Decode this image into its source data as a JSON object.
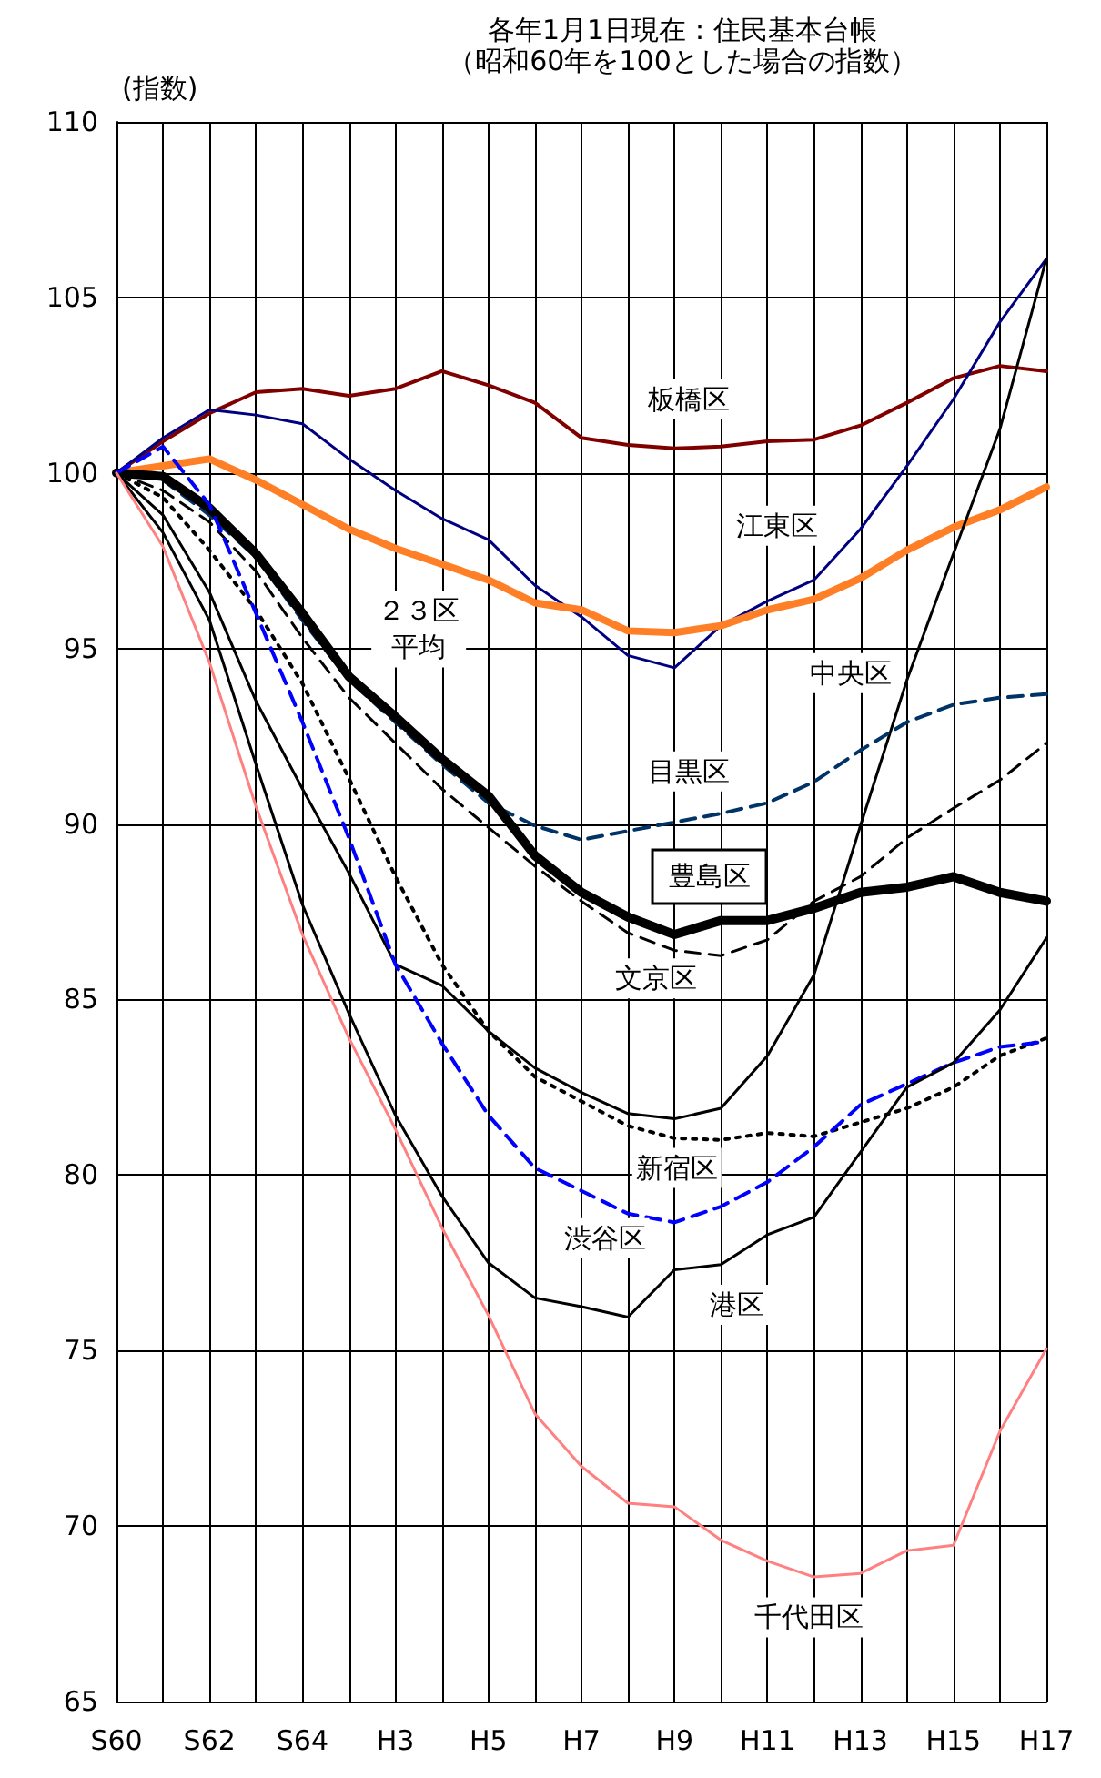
{
  "chart_data": {
    "type": "line",
    "title": "各年1月1日現在：住民基本台帳",
    "subtitle": "（昭和60年を100とした場合の指数）",
    "ylabel": "(指数)",
    "categories": [
      "S60",
      null,
      "S62",
      null,
      "S64",
      null,
      "H3",
      null,
      "H5",
      null,
      "H7",
      null,
      "H9",
      null,
      "H11",
      null,
      "H13",
      null,
      "H15",
      null,
      "H17"
    ],
    "ylim": [
      65,
      110
    ],
    "yticks": [
      65,
      70,
      75,
      80,
      85,
      90,
      95,
      100,
      105,
      110
    ],
    "grid": true,
    "legend": false,
    "marker": "none",
    "series": [
      {
        "name": "板橋区",
        "color": "#800000",
        "line_style": "solid",
        "values": [
          100,
          100.9,
          101.7,
          102.3,
          102.4,
          102.2,
          102.4,
          102.9,
          102.5,
          102.0,
          101.0,
          100.8,
          100.7,
          100.75,
          100.9,
          100.95,
          101.35,
          102.0,
          102.7,
          103.05,
          102.9
        ]
      },
      {
        "name": "江東区",
        "color": "#000080",
        "line_style": "solid",
        "values": [
          100,
          101.0,
          101.8,
          101.65,
          101.4,
          100.4,
          99.5,
          98.7,
          98.1,
          96.8,
          95.9,
          94.8,
          94.45,
          95.65,
          96.35,
          96.95,
          98.4,
          100.2,
          102.1,
          104.3,
          106.1
        ]
      },
      {
        "name": "２３区平均",
        "color": "#ff7f27",
        "line_style": "solid",
        "values": [
          100,
          100.2,
          100.4,
          99.8,
          99.1,
          98.4,
          97.85,
          97.4,
          96.95,
          96.3,
          96.1,
          95.5,
          95.45,
          95.65,
          96.1,
          96.4,
          97.0,
          97.8,
          98.45,
          98.95,
          99.6
        ]
      },
      {
        "name": "中央区",
        "color": "#000000",
        "line_style": "solid",
        "values": [
          100,
          98.8,
          96.6,
          93.5,
          91.0,
          88.6,
          86.0,
          85.4,
          84.1,
          83.05,
          82.35,
          81.75,
          81.6,
          81.9,
          83.4,
          85.7,
          89.95,
          94.1,
          97.7,
          101.25,
          106.1
        ]
      },
      {
        "name": "目黒区",
        "color": "#003366",
        "line_style": "dashed",
        "values": [
          100,
          99.8,
          98.8,
          97.6,
          95.8,
          94.1,
          92.9,
          91.7,
          90.6,
          89.95,
          89.55,
          89.8,
          90.05,
          90.3,
          90.6,
          91.2,
          92.1,
          92.9,
          93.4,
          93.6,
          93.7
        ]
      },
      {
        "name": "文京区",
        "color": "#000000",
        "line_style": "dashed",
        "values": [
          100,
          99.5,
          98.6,
          97.2,
          95.3,
          93.6,
          92.3,
          91.0,
          89.9,
          88.8,
          87.8,
          86.9,
          86.4,
          86.25,
          86.7,
          87.8,
          88.5,
          89.6,
          90.45,
          91.25,
          92.3
        ]
      },
      {
        "name": "豊島区",
        "color": "#000000",
        "line_style": "solid",
        "values": [
          100,
          99.9,
          99.0,
          97.7,
          96.0,
          94.2,
          93.05,
          91.85,
          90.8,
          89.1,
          88.05,
          87.35,
          86.85,
          87.25,
          87.25,
          87.6,
          88.05,
          88.2,
          88.5,
          88.05,
          87.8
        ]
      },
      {
        "name": "新宿区",
        "color": "#000000",
        "line_style": "dotted",
        "values": [
          100,
          99.3,
          97.8,
          96.1,
          94.0,
          91.3,
          88.5,
          86.0,
          84.1,
          82.8,
          82.1,
          81.4,
          81.05,
          81.0,
          81.2,
          81.1,
          81.5,
          81.9,
          82.5,
          83.4,
          83.9
        ]
      },
      {
        "name": "渋谷区",
        "color": "#0000ff",
        "line_style": "dashed",
        "values": [
          100,
          100.75,
          99.1,
          96.0,
          92.9,
          89.6,
          86.0,
          83.75,
          81.7,
          80.2,
          79.55,
          78.9,
          78.65,
          79.1,
          79.8,
          80.8,
          82.0,
          82.6,
          83.2,
          83.65,
          83.8
        ]
      },
      {
        "name": "港区",
        "color": "#000000",
        "line_style": "solid",
        "values": [
          100,
          98.3,
          95.8,
          91.7,
          87.7,
          84.6,
          81.7,
          79.4,
          77.5,
          76.5,
          76.25,
          75.95,
          77.3,
          77.45,
          78.3,
          78.8,
          80.65,
          82.5,
          83.2,
          84.7,
          86.75
        ]
      },
      {
        "name": "千代田区",
        "color": "#ff8080",
        "line_style": "solid",
        "values": [
          100,
          97.9,
          94.6,
          90.5,
          86.85,
          83.9,
          81.3,
          78.5,
          76.0,
          73.2,
          71.7,
          70.65,
          70.55,
          69.6,
          69.0,
          68.55,
          68.65,
          69.3,
          69.45,
          72.7,
          75.05
        ]
      }
    ]
  }
}
